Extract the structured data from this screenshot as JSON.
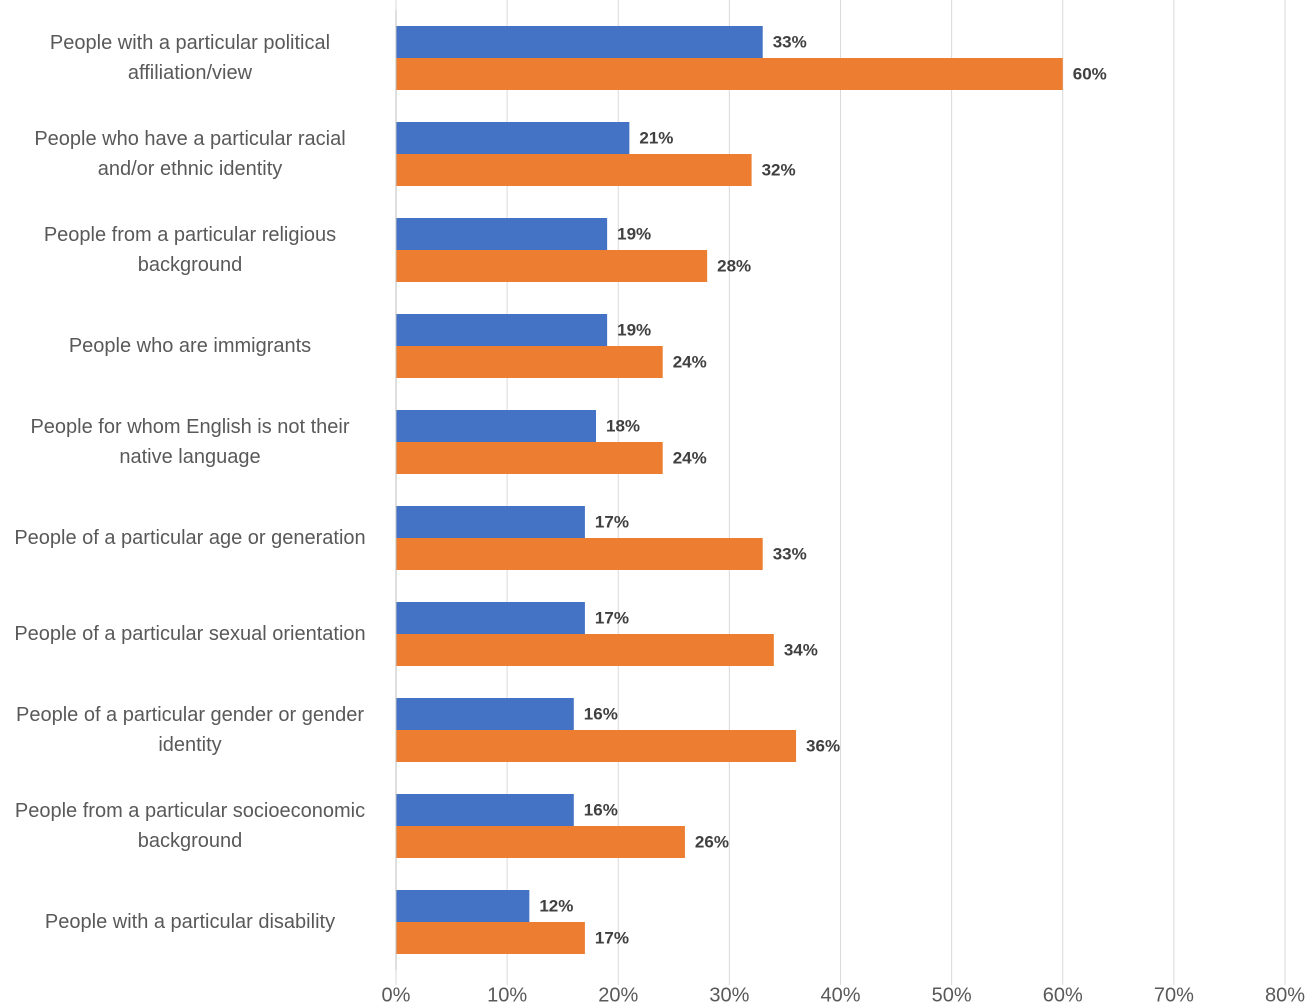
{
  "chart_data": {
    "type": "hbar",
    "categories": [
      "People with a particular political affiliation/view",
      "People who have a particular racial and/or ethnic identity",
      "People from a particular religious background",
      "People who are immigrants",
      "People for whom English is not their native language",
      "People of a particular age or generation",
      "People of a particular sexual orientation",
      "People of a particular gender or gender identity",
      "People from a particular socioeconomic background",
      "People with a particular disability"
    ],
    "series": [
      {
        "color": "#4472c4",
        "values": [
          33,
          21,
          19,
          19,
          18,
          17,
          17,
          16,
          16,
          12
        ],
        "value_labels": [
          "33%",
          "21%",
          "19%",
          "19%",
          "18%",
          "17%",
          "17%",
          "16%",
          "16%",
          "12%"
        ]
      },
      {
        "color": "#ed7d31",
        "values": [
          60,
          32,
          28,
          24,
          24,
          33,
          34,
          36,
          26,
          17
        ],
        "value_labels": [
          "60%",
          "32%",
          "28%",
          "24%",
          "24%",
          "33%",
          "34%",
          "36%",
          "26%",
          "17%"
        ]
      }
    ],
    "xlim": [
      0,
      80
    ],
    "xticks": [
      {
        "value": 0,
        "label": "0%"
      },
      {
        "value": 10,
        "label": "10%"
      },
      {
        "value": 20,
        "label": "20%"
      },
      {
        "value": 30,
        "label": "30%"
      },
      {
        "value": 40,
        "label": "40%"
      },
      {
        "value": 50,
        "label": "50%"
      },
      {
        "value": 60,
        "label": "60%"
      },
      {
        "value": 70,
        "label": "70%"
      },
      {
        "value": 80,
        "label": "80%"
      }
    ],
    "grid": true
  }
}
